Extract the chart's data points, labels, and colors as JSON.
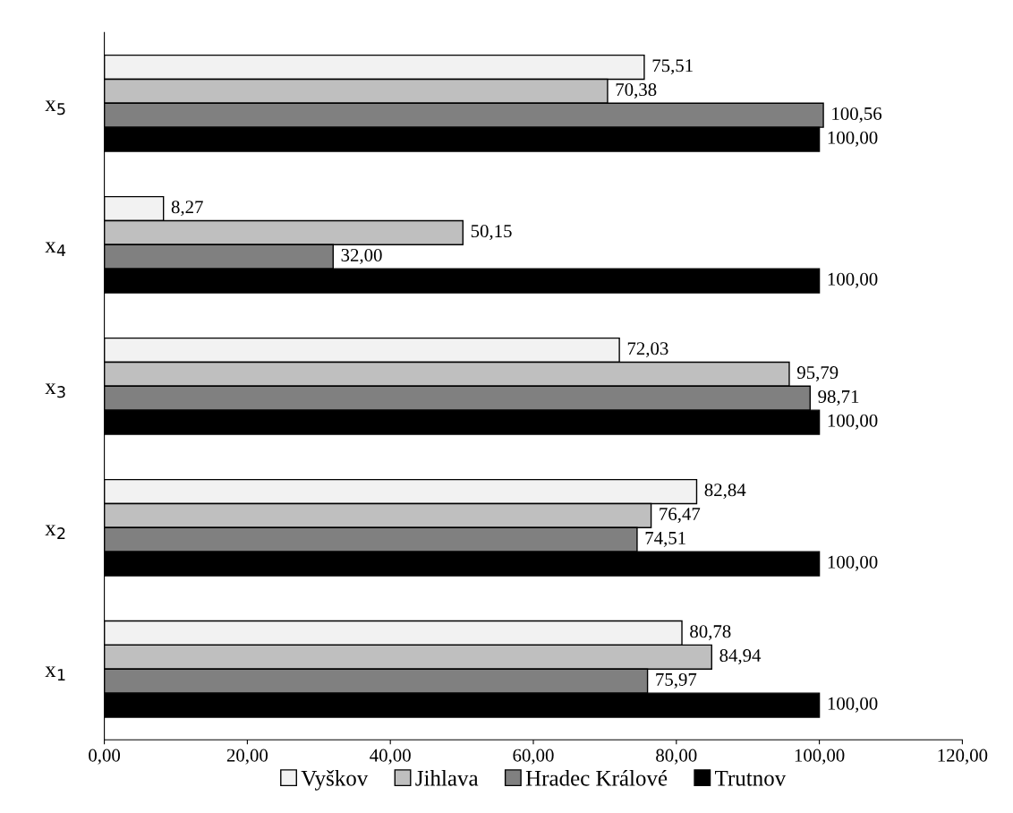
{
  "chart_data": {
    "type": "bar",
    "orientation": "horizontal",
    "categories": [
      "x$_{5}$",
      "x$_{4}$",
      "x$_{3}$",
      "x$_{2}$",
      "x$_{1}$"
    ],
    "series": [
      {
        "name": "Vyškov",
        "color": "#f2f2f2",
        "values": [
          75.51,
          8.27,
          72.03,
          82.84,
          80.78
        ],
        "value_labels": [
          "75,51",
          "8,27",
          "72,03",
          "82,84",
          "80,78"
        ]
      },
      {
        "name": "Jihlava",
        "color": "#bfbfbf",
        "values": [
          70.38,
          50.15,
          95.79,
          76.47,
          84.94
        ],
        "value_labels": [
          "70,38",
          "50,15",
          "95,79",
          "76,47",
          "84,94"
        ]
      },
      {
        "name": "Hradec Králové",
        "color": "#808080",
        "values": [
          100.56,
          32.0,
          98.71,
          74.51,
          75.97
        ],
        "value_labels": [
          "100,56",
          "32,00",
          "98,71",
          "74,51",
          "75,97"
        ]
      },
      {
        "name": "Trutnov",
        "color": "#000000",
        "values": [
          100.0,
          100.0,
          100.0,
          100.0,
          100.0
        ],
        "value_labels": [
          "100,00",
          "100,00",
          "100,00",
          "100,00",
          "100,00"
        ]
      }
    ],
    "xlim": [
      0,
      120
    ],
    "xticks": [
      {
        "value": 0,
        "label": "0,00"
      },
      {
        "value": 20,
        "label": "20,00"
      },
      {
        "value": 40,
        "label": "40,00"
      },
      {
        "value": 60,
        "label": "60,00"
      },
      {
        "value": 80,
        "label": "80,00"
      },
      {
        "value": 100,
        "label": "100,00"
      },
      {
        "value": 120,
        "label": "120,00"
      }
    ],
    "grid": false,
    "legend": "bottom"
  }
}
